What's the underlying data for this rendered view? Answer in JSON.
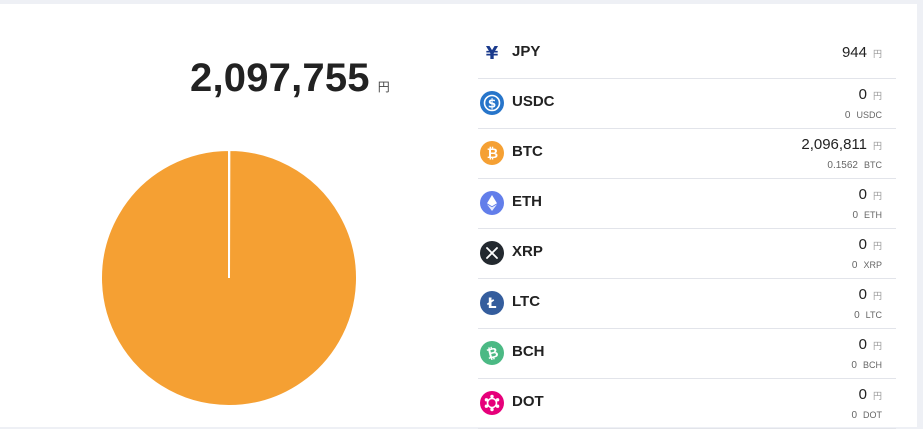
{
  "total": {
    "value": "2,097,755",
    "unit": "円"
  },
  "colors": {
    "btc": "#f5a033",
    "usdc": "#2775ca",
    "eth": "#627eea",
    "xrp": "#23292f",
    "ltc": "#345d9d",
    "bch": "#4bb984",
    "dot": "#e6007a",
    "jpy": "#1a3a8c"
  },
  "chart_data": {
    "type": "pie",
    "slices": [
      {
        "label": "JPY",
        "value": 944
      },
      {
        "label": "BTC",
        "value": 2096811
      },
      {
        "label": "USDC",
        "value": 0
      },
      {
        "label": "ETH",
        "value": 0
      },
      {
        "label": "XRP",
        "value": 0
      },
      {
        "label": "LTC",
        "value": 0
      },
      {
        "label": "BCH",
        "value": 0
      },
      {
        "label": "DOT",
        "value": 0
      }
    ]
  },
  "assets": [
    {
      "symbol": "JPY",
      "icon": "yen-icon",
      "jpy_value": "944",
      "jpy_unit": "円"
    },
    {
      "symbol": "USDC",
      "icon": "usdc-icon",
      "jpy_value": "0",
      "jpy_unit": "円",
      "amount": "0",
      "amount_unit": "USDC"
    },
    {
      "symbol": "BTC",
      "icon": "bitcoin-icon",
      "jpy_value": "2,096,811",
      "jpy_unit": "円",
      "amount": "0.1562",
      "amount_unit": "BTC"
    },
    {
      "symbol": "ETH",
      "icon": "ethereum-icon",
      "jpy_value": "0",
      "jpy_unit": "円",
      "amount": "0",
      "amount_unit": "ETH"
    },
    {
      "symbol": "XRP",
      "icon": "xrp-icon",
      "jpy_value": "0",
      "jpy_unit": "円",
      "amount": "0",
      "amount_unit": "XRP"
    },
    {
      "symbol": "LTC",
      "icon": "litecoin-icon",
      "jpy_value": "0",
      "jpy_unit": "円",
      "amount": "0",
      "amount_unit": "LTC"
    },
    {
      "symbol": "BCH",
      "icon": "bitcoin-cash-icon",
      "jpy_value": "0",
      "jpy_unit": "円",
      "amount": "0",
      "amount_unit": "BCH"
    },
    {
      "symbol": "DOT",
      "icon": "polkadot-icon",
      "jpy_value": "0",
      "jpy_unit": "円",
      "amount": "0",
      "amount_unit": "DOT"
    }
  ]
}
